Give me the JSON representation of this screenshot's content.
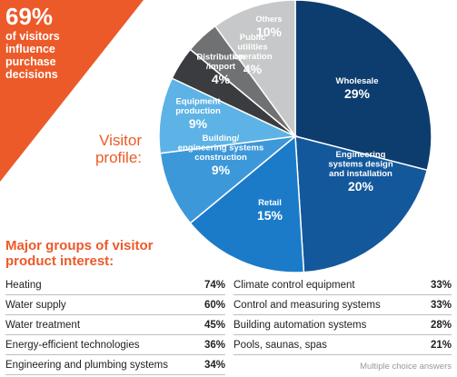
{
  "banner": {
    "stat": "69%",
    "lines": [
      "of visitors",
      "influence",
      "purchase",
      "decisions"
    ],
    "color": "#ec5a29"
  },
  "profile_label": [
    "Visitor",
    "profile:"
  ],
  "chart_data": {
    "type": "pie",
    "unit": "%",
    "slices": [
      {
        "label": "Wholesale",
        "value": 29,
        "color": "#0d3d6e"
      },
      {
        "label": "Engineering systems design and installation",
        "value": 20,
        "color": "#14589c"
      },
      {
        "label": "Retail",
        "value": 15,
        "color": "#1b7bc9"
      },
      {
        "label": "Building/ engineering systems construction",
        "value": 9,
        "color": "#3d98d9"
      },
      {
        "label": "Equipment production",
        "value": 9,
        "color": "#5db3e5"
      },
      {
        "label": "Distribution /import",
        "value": 4,
        "color": "#3a3c3f"
      },
      {
        "label": "Public utilities operation",
        "value": 4,
        "color": "#6f7173"
      },
      {
        "label": "Others",
        "value": 10,
        "color": "#c7c8c9"
      }
    ]
  },
  "product_interest": {
    "title": [
      "Major groups of visitor",
      "product interest:"
    ],
    "left": [
      {
        "label": "Heating",
        "value": "74%"
      },
      {
        "label": "Water supply",
        "value": "60%"
      },
      {
        "label": "Water treatment",
        "value": "45%"
      },
      {
        "label": "Energy-efficient technologies",
        "value": "36%"
      },
      {
        "label": "Engineering and plumbing systems",
        "value": "34%"
      }
    ],
    "right": [
      {
        "label": "Climate control equipment",
        "value": "33%"
      },
      {
        "label": "Control and measuring systems",
        "value": "33%"
      },
      {
        "label": "Building automation systems",
        "value": "28%"
      },
      {
        "label": "Pools, saunas, spas",
        "value": "21%"
      }
    ],
    "note": "Multiple choice answers"
  }
}
